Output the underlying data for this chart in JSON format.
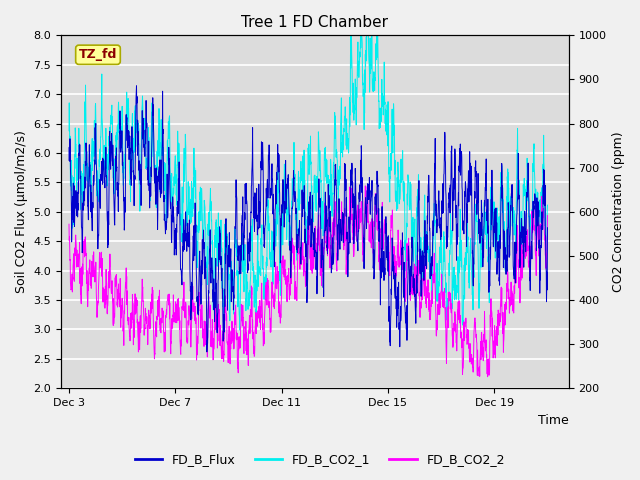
{
  "title": "Tree 1 FD Chamber",
  "ylabel_left": "Soil CO2 Flux (μmol/m2/s)",
  "ylabel_right": "CO2 Concentration (ppm)",
  "xlabel": "Time",
  "ylim_left": [
    2.0,
    8.0
  ],
  "ylim_right": [
    200,
    1000
  ],
  "xtick_labels": [
    "Dec 3",
    "Dec 7",
    "Dec 11",
    "Dec 15",
    "Dec 19"
  ],
  "xtick_positions": [
    0,
    4,
    8,
    12,
    16
  ],
  "xlim": [
    -0.3,
    18.8
  ],
  "color_flux": "#0000CD",
  "color_co2_1": "#00EEEE",
  "color_co2_2": "#FF00FF",
  "legend_labels": [
    "FD_B_Flux",
    "FD_B_CO2_1",
    "FD_B_CO2_2"
  ],
  "annotation_text": "TZ_fd",
  "annotation_color": "#8B0000",
  "annotation_bg": "#FFFF99",
  "annotation_edge": "#AAAA00",
  "background_color": "#DCDCDC",
  "fig_facecolor": "#F0F0F0",
  "grid_color": "#FFFFFF",
  "n_points": 2000,
  "linewidth": 0.7
}
